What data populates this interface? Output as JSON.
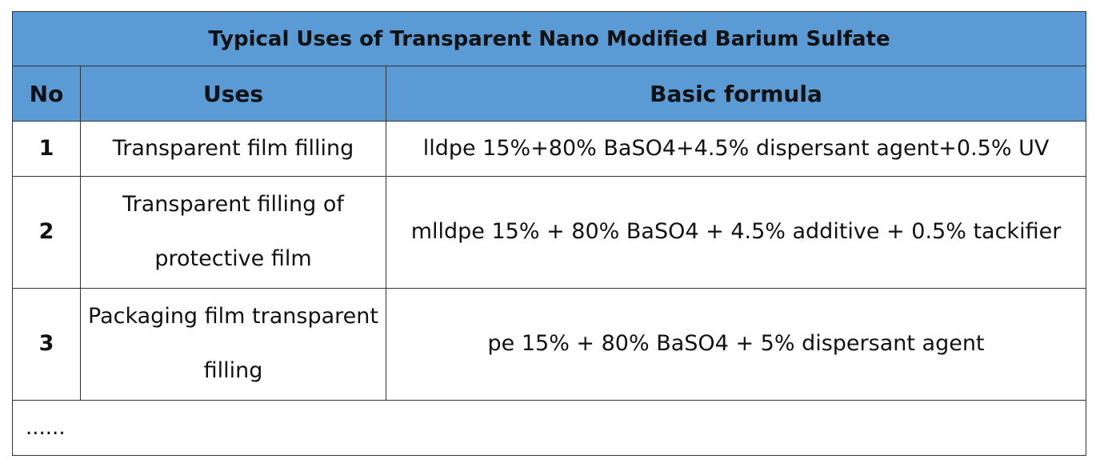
{
  "title": "Typical Uses of Transparent Nano Modified Barium Sulfate",
  "headers": {
    "no": "No",
    "uses": "Uses",
    "formula": "Basic formula"
  },
  "rows": [
    {
      "no": "1",
      "use": "Transparent film filling",
      "formula": "lldpe 15%+80% BaSO4+4.5% dispersant agent+0.5% UV"
    },
    {
      "no": "2",
      "use": "Transparent filling of protective film",
      "formula": "mlldpe 15% + 80% BaSO4 + 4.5% additive + 0.5% tackifier"
    },
    {
      "no": "3",
      "use": "Packaging film transparent filling",
      "formula": "pe 15% + 80% BaSO4 + 5% dispersant agent"
    }
  ],
  "more": "......"
}
